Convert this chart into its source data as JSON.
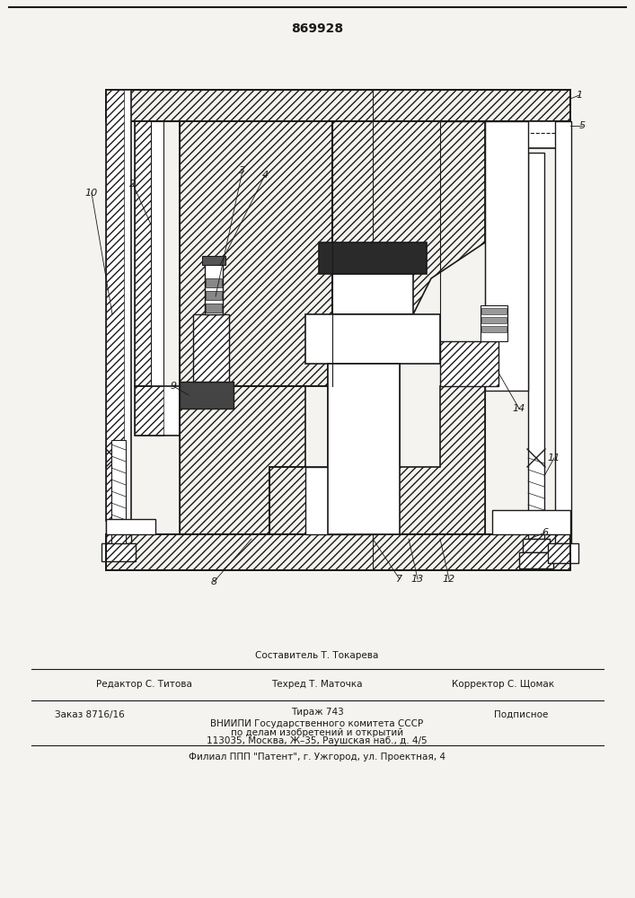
{
  "patent_number": "869928",
  "bg_color": "#f5f3ef",
  "lc": "#1a1a1a",
  "footer": {
    "editor": "Редактор С. Титова",
    "composer": "Составитель Т. Токарева",
    "techred": "Техред Т. Маточка",
    "corrector": "Корректор С. Щомак",
    "order": "Заказ 8716/16",
    "tirazh": "Тираж 743",
    "podpisnoe": "Подписное",
    "vnipi": "ВНИИПИ Государственного комитета СССР",
    "po_delam": "по делам изобретений и открытий",
    "address": "113035, Москва, Ж–35, Раушская наб., д. 4/5",
    "filial": "Филиал ППП \"Патент\", г. Ужгород, ул. Проектная, 4"
  }
}
